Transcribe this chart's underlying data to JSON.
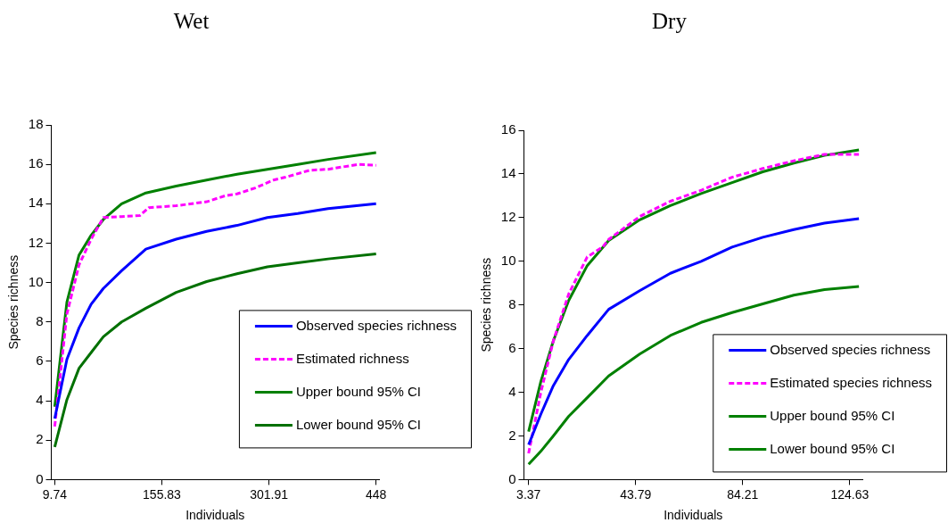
{
  "chart_data": [
    {
      "type": "line",
      "title": "Wet",
      "xlabel": "Individuals",
      "ylabel": "Species richness",
      "xlim": [
        5,
        452
      ],
      "xticks": [
        9.74,
        155.83,
        301.91,
        448
      ],
      "ylim": [
        0,
        18
      ],
      "yticks": [
        0,
        2,
        4,
        6,
        8,
        10,
        12,
        14,
        16,
        18
      ],
      "grid": false,
      "legend": "bottom right",
      "marker": "none",
      "series": [
        {
          "name": "Observed species richness",
          "color": "#0000ff",
          "line_style": "solid",
          "x": [
            9.74,
            26.3,
            42.9,
            59.4,
            76,
            100.9,
            134,
            175.4,
            216.9,
            258.3,
            299.7,
            341.1,
            382.5,
            448
          ],
          "values": [
            3.1,
            6.1,
            7.7,
            8.9,
            9.7,
            10.6,
            11.7,
            12.2,
            12.6,
            12.9,
            13.3,
            13.5,
            13.75,
            14
          ]
        },
        {
          "name": "Estimated richness",
          "color": "#ff00ff",
          "line_style": "dashed",
          "x": [
            9.74,
            26.3,
            42.9,
            59.4,
            76,
            100.9,
            125.7,
            138.1,
            175.4,
            216.9,
            241.7,
            258.3,
            283.1,
            308,
            324.5,
            357.7,
            382.5,
            424,
            448
          ],
          "values": [
            2.7,
            8.4,
            10.9,
            12.2,
            13.3,
            13.35,
            13.4,
            13.8,
            13.9,
            14.1,
            14.4,
            14.5,
            14.8,
            15.2,
            15.35,
            15.7,
            15.75,
            16,
            15.95
          ]
        },
        {
          "name": "Upper bound 95% CI",
          "color": "#008000",
          "line_style": "solid",
          "x": [
            9.74,
            26.3,
            42.9,
            59.4,
            76,
            100.9,
            134,
            175.4,
            216.9,
            258.3,
            299.7,
            341.1,
            382.5,
            448
          ],
          "values": [
            3.7,
            9,
            11.4,
            12.4,
            13.2,
            14,
            14.55,
            14.9,
            15.2,
            15.5,
            15.75,
            16,
            16.25,
            16.6
          ]
        },
        {
          "name": "Lower bound 95% CI",
          "color": "#007000",
          "line_style": "solid",
          "x": [
            9.74,
            26.3,
            42.9,
            59.4,
            76,
            100.9,
            134,
            175.4,
            216.9,
            258.3,
            299.7,
            341.1,
            382.5,
            448
          ],
          "values": [
            1.65,
            4.05,
            5.65,
            6.45,
            7.25,
            8,
            8.7,
            9.5,
            10.05,
            10.45,
            10.8,
            11,
            11.2,
            11.45
          ]
        }
      ]
    },
    {
      "type": "line",
      "title": "Dry",
      "xlabel": "Individuals",
      "ylabel": "Species richness",
      "xlim": [
        1.6,
        129.4
      ],
      "xticks": [
        3.37,
        43.79,
        84.21,
        124.63
      ],
      "ylim": [
        0,
        16
      ],
      "yticks": [
        0,
        2,
        4,
        6,
        8,
        10,
        12,
        14,
        16
      ],
      "grid": false,
      "legend": "bottom right",
      "marker": "none",
      "series": [
        {
          "name": "Observed species richness",
          "color": "#0000ff",
          "line_style": "solid",
          "x": [
            3.37,
            8,
            12.7,
            18.5,
            25.5,
            33.6,
            45.3,
            56.9,
            68.5,
            80.2,
            91.8,
            103.5,
            115.1,
            128.1
          ],
          "values": [
            1.6,
            3,
            4.3,
            5.5,
            6.6,
            7.8,
            8.65,
            9.45,
            10,
            10.65,
            11.1,
            11.45,
            11.75,
            11.95
          ]
        },
        {
          "name": "Estimated species richness",
          "color": "#ff00ff",
          "line_style": "dashed",
          "x": [
            3.37,
            8,
            12.7,
            18.5,
            25.5,
            31.3,
            33.6,
            45.3,
            56.9,
            68.5,
            80.2,
            91.8,
            103.5,
            115.1,
            128.1
          ],
          "values": [
            1.2,
            4,
            6.35,
            8.5,
            10.2,
            10.65,
            11,
            12.05,
            12.75,
            13.25,
            13.85,
            14.25,
            14.6,
            14.9,
            14.9
          ]
        },
        {
          "name": "Upper bound 95% CI",
          "color": "#008000",
          "line_style": "solid",
          "x": [
            3.37,
            8,
            12.7,
            18.5,
            25.5,
            33.6,
            45.3,
            56.9,
            68.5,
            80.2,
            91.8,
            103.5,
            115.1,
            128.1
          ],
          "values": [
            2.2,
            4.5,
            6.35,
            8.2,
            9.8,
            10.95,
            11.9,
            12.55,
            13.1,
            13.6,
            14.1,
            14.5,
            14.85,
            15.1
          ]
        },
        {
          "name": "Lower bound 95% CI",
          "color": "#008000",
          "line_style": "solid",
          "x": [
            3.37,
            8,
            12.7,
            18.5,
            25.5,
            33.6,
            45.3,
            56.9,
            68.5,
            80.2,
            91.8,
            103.5,
            115.1,
            128.1
          ],
          "values": [
            0.7,
            1.3,
            2,
            2.9,
            3.75,
            4.75,
            5.75,
            6.6,
            7.2,
            7.65,
            8.05,
            8.45,
            8.7,
            8.85
          ]
        }
      ]
    }
  ]
}
